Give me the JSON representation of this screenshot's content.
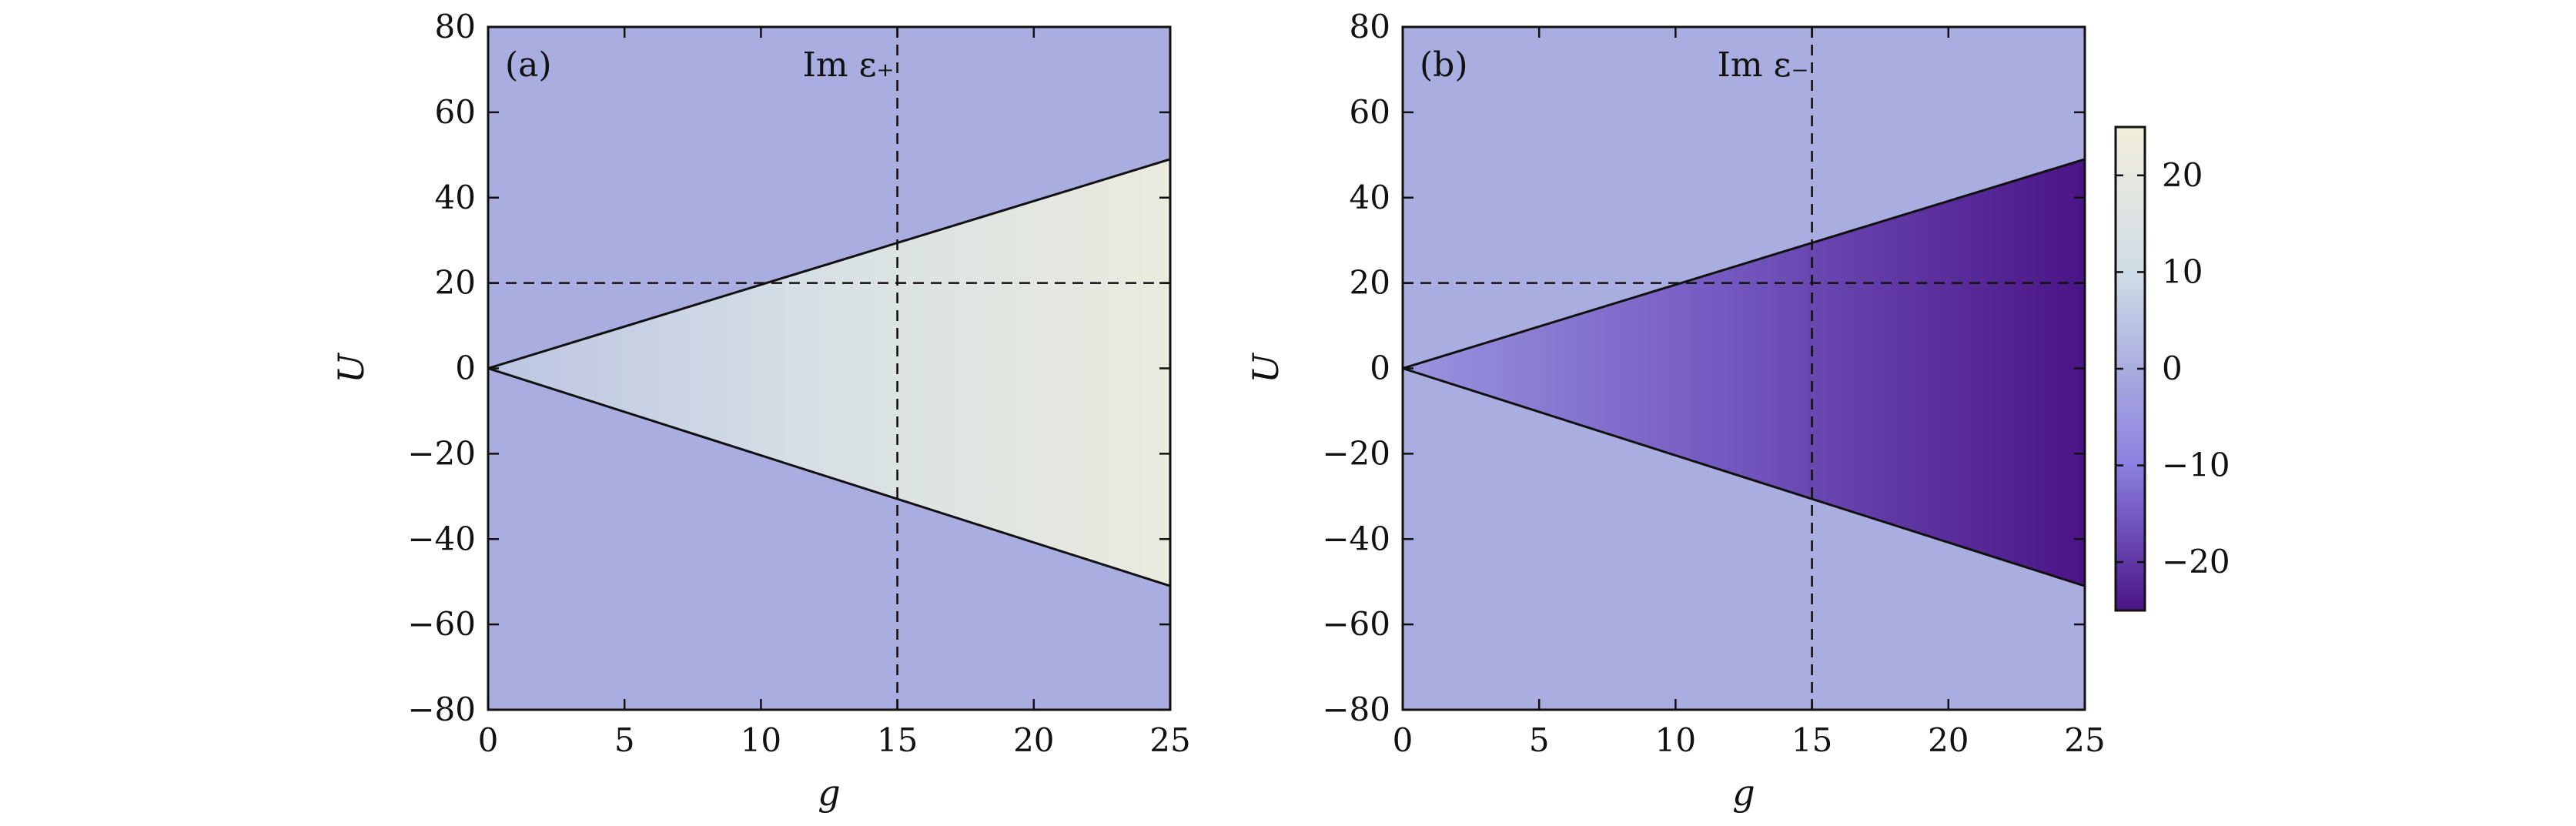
{
  "chart_data": [
    {
      "type": "heatmap",
      "panel_label": "(a)",
      "title": "Im ε₊",
      "xlabel": "g",
      "ylabel": "U",
      "xlim": [
        0,
        25
      ],
      "ylim": [
        -80,
        80
      ],
      "x_ticks": [
        0,
        5,
        10,
        15,
        20,
        25
      ],
      "y_ticks": [
        -80,
        -60,
        -40,
        -20,
        0,
        20,
        40,
        60,
        80
      ],
      "x_tick_labels": [
        "0",
        "5",
        "10",
        "15",
        "20",
        "25"
      ],
      "y_tick_labels": [
        "−80",
        "−60",
        "−40",
        "−20",
        "0",
        "20",
        "40",
        "60",
        "80"
      ],
      "background_value": 0,
      "region_value_at_apex": 5,
      "region_value_at_g_max": 22,
      "boundary_lines": [
        {
          "style": "solid",
          "points": [
            [
              0,
              0
            ],
            [
              25,
              49
            ]
          ]
        },
        {
          "style": "solid",
          "points": [
            [
              0,
              0
            ],
            [
              25,
              -51
            ]
          ]
        }
      ],
      "reference_lines": [
        {
          "style": "dashed",
          "orientation": "vertical",
          "value": 15
        },
        {
          "style": "dashed",
          "orientation": "horizontal",
          "value": 20
        }
      ]
    },
    {
      "type": "heatmap",
      "panel_label": "(b)",
      "title": "Im ε₋",
      "xlabel": "g",
      "ylabel": "U",
      "xlim": [
        0,
        25
      ],
      "ylim": [
        -80,
        80
      ],
      "x_ticks": [
        0,
        5,
        10,
        15,
        20,
        25
      ],
      "y_ticks": [
        -80,
        -60,
        -40,
        -20,
        0,
        20,
        40,
        60,
        80
      ],
      "x_tick_labels": [
        "0",
        "5",
        "10",
        "15",
        "20",
        "25"
      ],
      "y_tick_labels": [
        "−80",
        "−60",
        "−40",
        "−20",
        "0",
        "20",
        "40",
        "60",
        "80"
      ],
      "background_value": 0,
      "region_value_at_apex": -5,
      "region_value_at_g_max": -25,
      "boundary_lines": [
        {
          "style": "solid",
          "points": [
            [
              0,
              0
            ],
            [
              25,
              49
            ]
          ]
        },
        {
          "style": "solid",
          "points": [
            [
              0,
              0
            ],
            [
              25,
              -51
            ]
          ]
        }
      ],
      "reference_lines": [
        {
          "style": "dashed",
          "orientation": "vertical",
          "value": 15
        },
        {
          "style": "dashed",
          "orientation": "horizontal",
          "value": 20
        }
      ]
    }
  ],
  "colorbar": {
    "range": [
      -25,
      25
    ],
    "ticks": [
      20,
      10,
      0,
      -10,
      -20
    ],
    "tick_labels": [
      "20",
      "10",
      "0",
      "−10",
      "−20"
    ],
    "colors": {
      "min": "#4a1486",
      "mid_low": "#8b7fe0",
      "zero": "#a9addf",
      "mid_high": "#cfdde6",
      "max": "#f2eedc"
    }
  }
}
